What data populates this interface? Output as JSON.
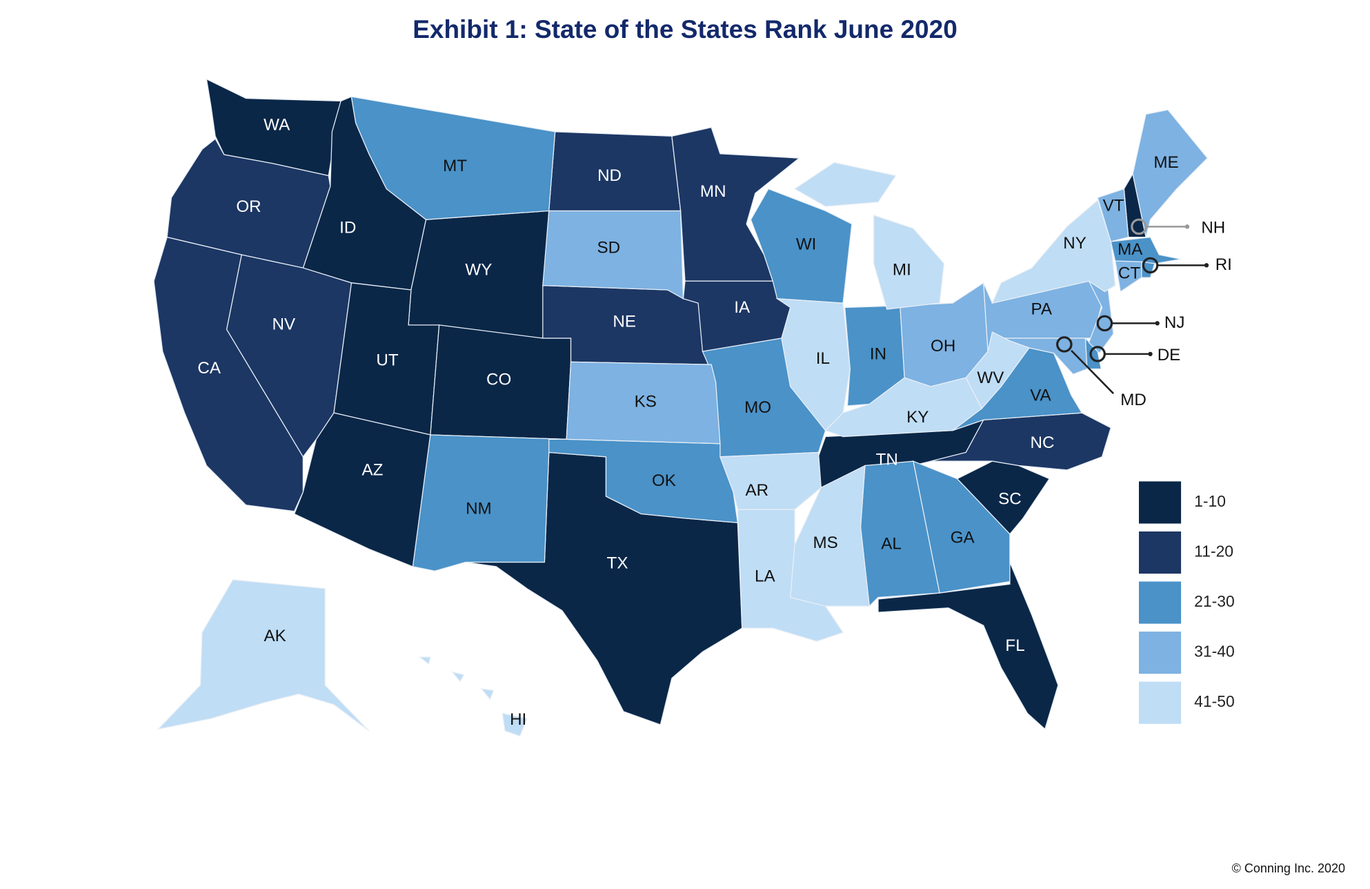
{
  "title": "Exhibit 1: State of the States Rank June 2020",
  "copyright": "© Conning Inc. 2020",
  "chart_data": {
    "type": "choropleth",
    "title": "Exhibit 1: State of the States Rank June 2020",
    "legend_placement": "bottom-right",
    "legend": [
      {
        "range": "1-10",
        "color": "#0a2748"
      },
      {
        "range": "11-20",
        "color": "#1c3764"
      },
      {
        "range": "21-30",
        "color": "#4a92c8"
      },
      {
        "range": "31-40",
        "color": "#7db2e2"
      },
      {
        "range": "41-50",
        "color": "#bfddf5"
      }
    ],
    "states": [
      {
        "code": "WA",
        "range": "1-10"
      },
      {
        "code": "ID",
        "range": "1-10"
      },
      {
        "code": "WY",
        "range": "1-10"
      },
      {
        "code": "UT",
        "range": "1-10"
      },
      {
        "code": "CO",
        "range": "1-10"
      },
      {
        "code": "AZ",
        "range": "1-10"
      },
      {
        "code": "TX",
        "range": "1-10"
      },
      {
        "code": "TN",
        "range": "1-10"
      },
      {
        "code": "SC",
        "range": "1-10"
      },
      {
        "code": "FL",
        "range": "1-10"
      },
      {
        "code": "NH",
        "range": "1-10"
      },
      {
        "code": "OR",
        "range": "11-20"
      },
      {
        "code": "CA",
        "range": "11-20"
      },
      {
        "code": "NV",
        "range": "11-20"
      },
      {
        "code": "ND",
        "range": "11-20"
      },
      {
        "code": "MN",
        "range": "11-20"
      },
      {
        "code": "NE",
        "range": "11-20"
      },
      {
        "code": "IA",
        "range": "11-20"
      },
      {
        "code": "NC",
        "range": "11-20"
      },
      {
        "code": "MT",
        "range": "21-30"
      },
      {
        "code": "WI",
        "range": "21-30"
      },
      {
        "code": "IN",
        "range": "21-30"
      },
      {
        "code": "MO",
        "range": "21-30"
      },
      {
        "code": "NM",
        "range": "21-30"
      },
      {
        "code": "OK",
        "range": "21-30"
      },
      {
        "code": "AL",
        "range": "21-30"
      },
      {
        "code": "GA",
        "range": "21-30"
      },
      {
        "code": "VA",
        "range": "21-30"
      },
      {
        "code": "MA",
        "range": "21-30"
      },
      {
        "code": "DE",
        "range": "21-30"
      },
      {
        "code": "RI",
        "range": "21-30"
      },
      {
        "code": "SD",
        "range": "31-40"
      },
      {
        "code": "KS",
        "range": "31-40"
      },
      {
        "code": "OH",
        "range": "31-40"
      },
      {
        "code": "PA",
        "range": "31-40"
      },
      {
        "code": "ME",
        "range": "31-40"
      },
      {
        "code": "VT",
        "range": "31-40"
      },
      {
        "code": "CT",
        "range": "31-40"
      },
      {
        "code": "NJ",
        "range": "31-40"
      },
      {
        "code": "MD",
        "range": "31-40"
      },
      {
        "code": "IL",
        "range": "41-50"
      },
      {
        "code": "MI",
        "range": "41-50"
      },
      {
        "code": "KY",
        "range": "41-50"
      },
      {
        "code": "WV",
        "range": "41-50"
      },
      {
        "code": "NY",
        "range": "41-50"
      },
      {
        "code": "AR",
        "range": "41-50"
      },
      {
        "code": "LA",
        "range": "41-50"
      },
      {
        "code": "MS",
        "range": "41-50"
      },
      {
        "code": "AK",
        "range": "41-50"
      },
      {
        "code": "HI",
        "range": "41-50"
      }
    ]
  }
}
